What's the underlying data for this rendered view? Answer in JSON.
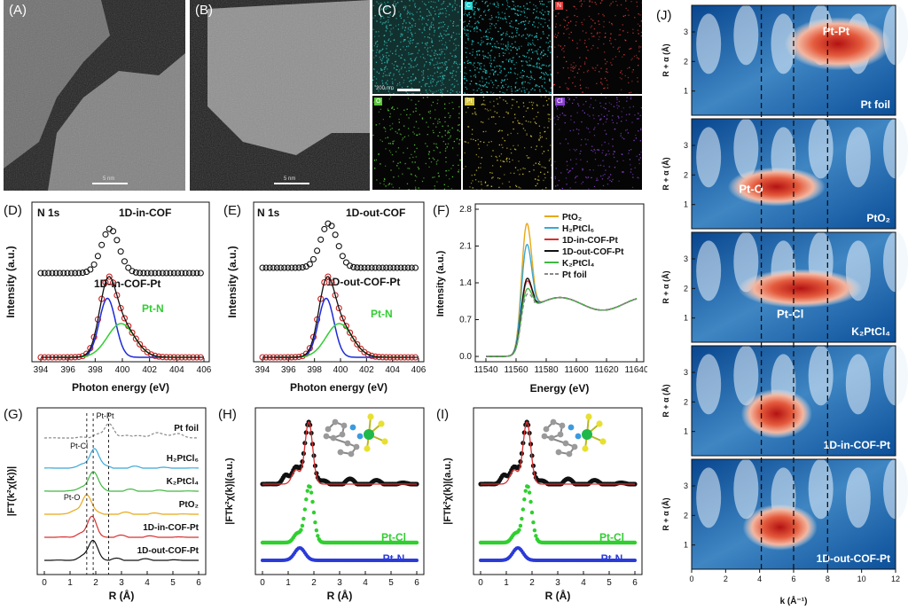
{
  "panels": {
    "A": {
      "label": "(A)",
      "scale_text": "5 nm"
    },
    "B": {
      "label": "(B)",
      "scale_text": "5 nm"
    },
    "C": {
      "label": "(C)",
      "scale_text": "200 nm",
      "maps": [
        {
          "tag": "",
          "color": "#2fb7b0"
        },
        {
          "tag": "C",
          "color": "#22d5d5"
        },
        {
          "tag": "N",
          "color": "#e23b3b"
        },
        {
          "tag": "O",
          "color": "#59c93a"
        },
        {
          "tag": "Pt",
          "color": "#d8c63a"
        },
        {
          "tag": "Cl",
          "color": "#8a3fd0"
        }
      ]
    },
    "D": {
      "label": "(D)",
      "title": "N 1s",
      "sample_top": "1D-in-COF",
      "sample_bottom": "1D-in-COF-Pt",
      "annotation": "Pt-N",
      "xlabel": "Photon energy (eV)",
      "ylabel": "Intensity (a.u.)",
      "xticks": [
        "394",
        "396",
        "398",
        "400",
        "402",
        "404",
        "406"
      ]
    },
    "E": {
      "label": "(E)",
      "title": "N 1s",
      "sample_top": "1D-out-COF",
      "sample_bottom": "1D-out-COF-Pt",
      "annotation": "Pt-N",
      "xlabel": "Photon energy (eV)",
      "ylabel": "Intensity (a.u.)",
      "xticks": [
        "394",
        "396",
        "398",
        "400",
        "402",
        "404",
        "406"
      ]
    },
    "F": {
      "label": "(F)",
      "xlabel": "Energy (eV)",
      "ylabel": "Intensity (a.u.)",
      "xticks": [
        "11540",
        "11560",
        "11580",
        "11600",
        "11620",
        "11640"
      ],
      "yticks": [
        "0.0",
        "0.7",
        "1.4",
        "2.1",
        "2.8"
      ],
      "legend": [
        {
          "text": "PtO₂",
          "color": "#e8a818",
          "dash": false
        },
        {
          "text": "H₂PtCl₆",
          "color": "#3aa8d8",
          "dash": false
        },
        {
          "text": "1D-in-COF-Pt",
          "color": "#d83030",
          "dash": false
        },
        {
          "text": "1D-out-COF-Pt",
          "color": "#111111",
          "dash": false
        },
        {
          "text": "K₂PtCl₄",
          "color": "#40b840",
          "dash": false
        },
        {
          "text": "Pt foil",
          "color": "#888888",
          "dash": true
        }
      ]
    },
    "G": {
      "label": "(G)",
      "xlabel": "R (Å)",
      "ylabel": "|FT(k²χ(k))|",
      "xticks": [
        "0",
        "1",
        "2",
        "3",
        "4",
        "5",
        "6"
      ],
      "annotations": [
        "Pt-Pt",
        "Pt-Cl",
        "Pt-O"
      ],
      "curves": [
        {
          "text": "Pt foil",
          "color": "#888888"
        },
        {
          "text": "H₂PtCl₆",
          "color": "#3aa8d8"
        },
        {
          "text": "K₂PtCl₄",
          "color": "#40b840"
        },
        {
          "text": "PtO₂",
          "color": "#e8a818"
        },
        {
          "text": "1D-in-COF-Pt",
          "color": "#d83030"
        },
        {
          "text": "1D-out-COF-Pt",
          "color": "#111111"
        }
      ]
    },
    "H": {
      "label": "(H)",
      "xlabel": "R (Å)",
      "ylabel": "|FTk²χ(k)|(a.u.)",
      "xticks": [
        "0",
        "1",
        "2",
        "3",
        "4",
        "5",
        "6"
      ],
      "path_cl": "Pt-Cl",
      "path_n": "Pt-N"
    },
    "I": {
      "label": "(I)",
      "xlabel": "R (Å)",
      "ylabel": "|FTk²χ(k)|(a.u.)",
      "xticks": [
        "0",
        "1",
        "2",
        "3",
        "4",
        "5",
        "6"
      ],
      "path_cl": "Pt-Cl",
      "path_n": "Pt-N"
    },
    "J": {
      "label": "(J)",
      "xlabel": "k (Å⁻¹)",
      "ylabel": "R + α (Å)",
      "xticks": [
        "0",
        "2",
        "4",
        "6",
        "8",
        "10",
        "12"
      ],
      "yticks": [
        "1",
        "2",
        "3"
      ],
      "maps": [
        {
          "sample": "Pt foil",
          "feature": "Pt-Pt"
        },
        {
          "sample": "PtO₂",
          "feature": "Pt-O"
        },
        {
          "sample": "K₂PtCl₄",
          "feature": "Pt-Cl"
        },
        {
          "sample": "1D-in-COF-Pt",
          "feature": ""
        },
        {
          "sample": "1D-out-COF-Pt",
          "feature": ""
        }
      ]
    }
  }
}
